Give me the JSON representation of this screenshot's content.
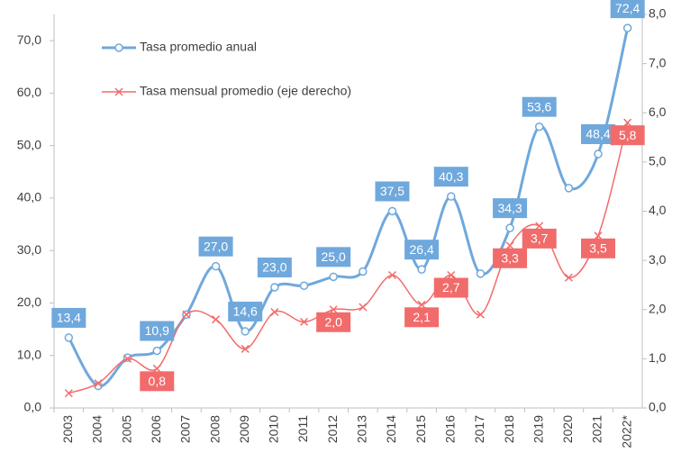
{
  "chart_data": {
    "type": "line",
    "categories": [
      "2003",
      "2004",
      "2005",
      "2006",
      "2007",
      "2008",
      "2009",
      "2010",
      "2011",
      "2012",
      "2013",
      "2014",
      "2015",
      "2016",
      "2017",
      "2018",
      "2019",
      "2020",
      "2021",
      "2022*"
    ],
    "series": [
      {
        "name": "Tasa promedio anual",
        "color": "#6fa8dc",
        "marker": "circle",
        "values": [
          13.4,
          4.2,
          9.6,
          10.9,
          17.8,
          27.0,
          14.6,
          23.0,
          23.3,
          25.0,
          26.0,
          37.5,
          26.4,
          40.3,
          25.6,
          34.3,
          53.6,
          41.9,
          48.4,
          72.4
        ],
        "value_labels": [
          "13,4",
          null,
          null,
          "10,9",
          null,
          "27,0",
          "14,6",
          "23,0",
          null,
          "25,0",
          null,
          "37,5",
          "26,4",
          "40,3",
          null,
          "34,3",
          "53,6",
          null,
          "48,4",
          "72,4"
        ]
      },
      {
        "name": "Tasa mensual promedio (eje derecho)",
        "color": "#f26b6b",
        "marker": "x",
        "axis": "y2",
        "values": [
          0.3,
          0.5,
          1.0,
          0.8,
          1.9,
          1.8,
          1.2,
          1.95,
          1.75,
          2.0,
          2.05,
          2.7,
          2.1,
          2.7,
          1.9,
          3.3,
          3.7,
          2.65,
          3.5,
          5.8
        ],
        "value_labels": [
          null,
          null,
          null,
          "0,8",
          null,
          null,
          null,
          null,
          null,
          "2,0",
          null,
          null,
          "2,1",
          "2,7",
          null,
          "3,3",
          "3,7",
          null,
          "3,5",
          "5,8"
        ]
      }
    ],
    "ylim": [
      0,
      75
    ],
    "yticks": [
      {
        "value": 0,
        "label": "0,0"
      },
      {
        "value": 10,
        "label": "10,0"
      },
      {
        "value": 20,
        "label": "20,0"
      },
      {
        "value": 30,
        "label": "30,0"
      },
      {
        "value": 40,
        "label": "40,0"
      },
      {
        "value": 50,
        "label": "50,0"
      },
      {
        "value": 60,
        "label": "60,0"
      },
      {
        "value": 70,
        "label": "70,0"
      }
    ],
    "y2lim": [
      0,
      8
    ],
    "y2ticks": [
      {
        "value": 0,
        "label": "0,0"
      },
      {
        "value": 1,
        "label": "1,0"
      },
      {
        "value": 2,
        "label": "2,0"
      },
      {
        "value": 3,
        "label": "3,0"
      },
      {
        "value": 4,
        "label": "4,0"
      },
      {
        "value": 5,
        "label": "5,0"
      },
      {
        "value": 6,
        "label": "6,0"
      },
      {
        "value": 7,
        "label": "7,0"
      },
      {
        "value": 8,
        "label": "8,0"
      }
    ],
    "legend": "top-left",
    "smooth": true
  }
}
